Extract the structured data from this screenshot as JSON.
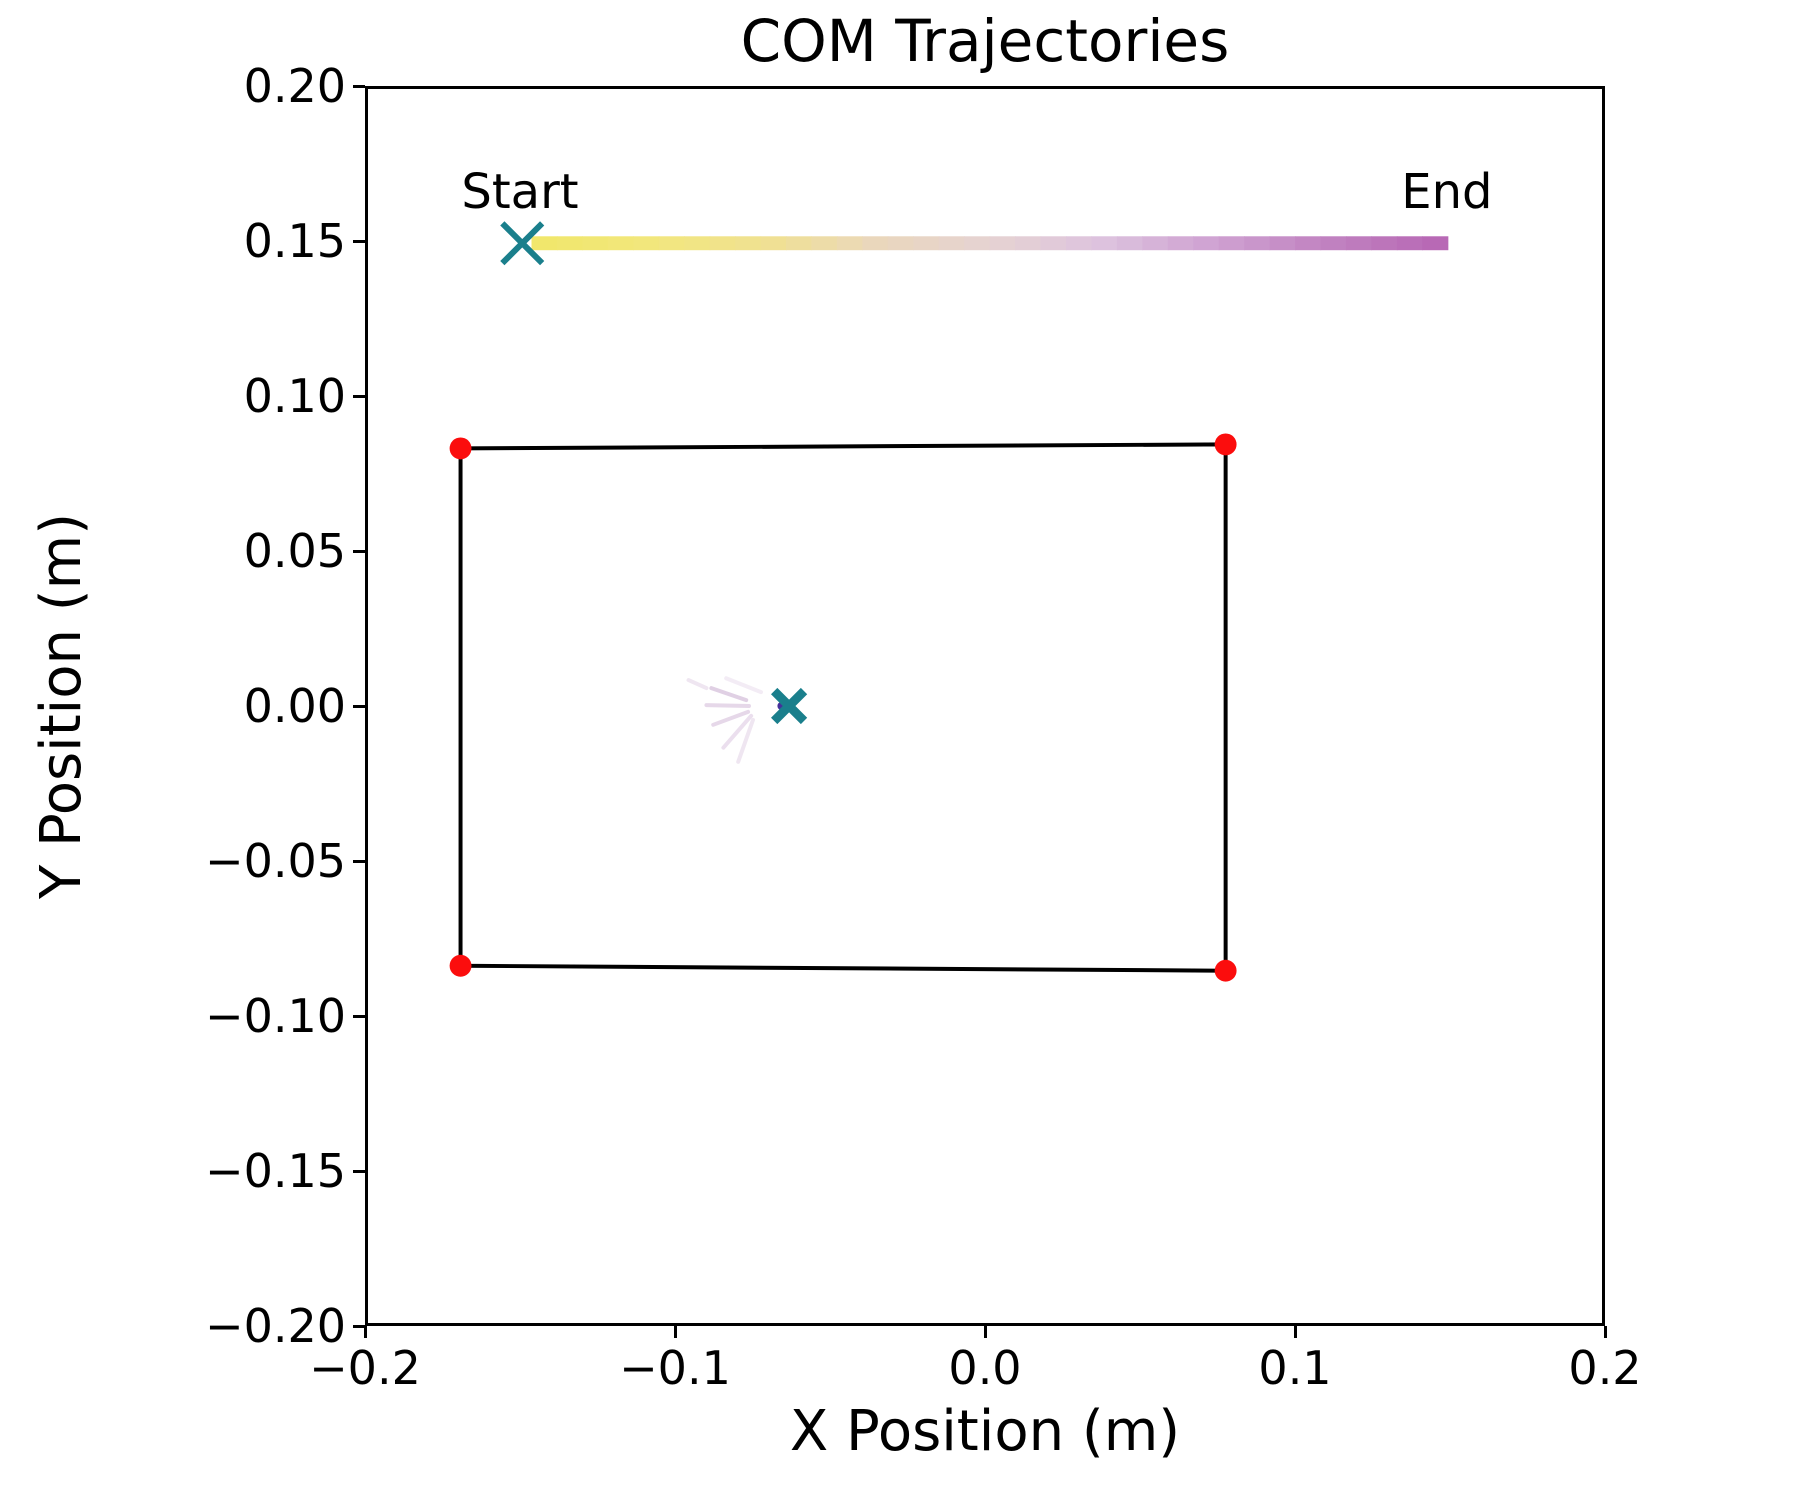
{
  "figure": {
    "title": "COM Trajectories"
  },
  "chart_data": {
    "type": "line",
    "title": "COM Trajectories",
    "xlabel": "X Position (m)",
    "ylabel": "Y Position (m)",
    "xlim": [
      -0.2,
      0.2
    ],
    "ylim": [
      -0.2,
      0.2
    ],
    "grid": false,
    "legend": "none",
    "xticks": {
      "values": [
        -0.2,
        -0.1,
        0.0,
        0.1,
        0.2
      ],
      "labels": [
        "−0.2",
        "−0.1",
        "0.0",
        "0.1",
        "0.2"
      ]
    },
    "yticks": {
      "values": [
        0.2,
        0.15,
        0.1,
        0.05,
        0.0,
        -0.05,
        -0.1,
        -0.15,
        -0.2
      ],
      "labels": [
        "0.20",
        "0.15",
        "0.10",
        "0.05",
        "0.00",
        "−0.05",
        "−0.10",
        "−0.15",
        "−0.20"
      ]
    },
    "annotations": [
      {
        "label": "Start",
        "x": -0.15,
        "y": 0.157
      },
      {
        "label": "End",
        "x": 0.149,
        "y": 0.157
      }
    ],
    "com_trajectory": {
      "description": "time-gradient COM path at constant y",
      "y": 0.15,
      "x_start": -0.147,
      "x_end": 0.15,
      "n_segments": 36,
      "colormap_stops": [
        "#f1e76c",
        "#f2e77e",
        "#f0e192",
        "#ead7bd",
        "#e6d3d2",
        "#ddc3de",
        "#cfa2d2",
        "#c183c1",
        "#b869b5"
      ]
    },
    "start_marker": {
      "x": -0.15,
      "y": 0.15,
      "shape": "x",
      "color": "#1a7f8c"
    },
    "center_marker": {
      "x": -0.0635,
      "y": 0.0,
      "shape": "x",
      "color": "#1a7f8c"
    },
    "center_dot": {
      "x": -0.066,
      "y": 0.0,
      "color": "#46309b"
    },
    "support_polygon": {
      "edge_color": "#000000",
      "corner_color": "#fb0d0d",
      "corners": [
        [
          -0.17,
          0.0835
        ],
        [
          0.078,
          0.0848
        ],
        [
          0.078,
          -0.0858
        ],
        [
          -0.17,
          -0.0842
        ]
      ]
    },
    "faint_trajectories": [
      {
        "x1": -0.0774,
        "y1": 0.0019,
        "x2": -0.0887,
        "y2": 0.0058,
        "color": "rgba(199,170,205,0.55)"
      },
      {
        "x1": -0.0765,
        "y1": 0.0,
        "x2": -0.0903,
        "y2": 0.0003,
        "color": "rgba(205,178,212,0.50)"
      },
      {
        "x1": -0.0768,
        "y1": -0.0019,
        "x2": -0.0881,
        "y2": -0.0061,
        "color": "rgba(205,178,212,0.50)"
      },
      {
        "x1": -0.0758,
        "y1": -0.0032,
        "x2": -0.0848,
        "y2": -0.0135,
        "color": "rgba(210,185,218,0.45)"
      },
      {
        "x1": -0.0752,
        "y1": -0.0045,
        "x2": -0.08,
        "y2": -0.0181,
        "color": "rgba(214,192,220,0.40)"
      },
      {
        "x1": -0.0903,
        "y1": 0.0058,
        "x2": -0.0961,
        "y2": 0.0084,
        "color": "rgba(214,192,220,0.40)"
      },
      {
        "x1": -0.0726,
        "y1": 0.0045,
        "x2": -0.0839,
        "y2": 0.009,
        "color": "rgba(220,200,226,0.35)"
      }
    ]
  }
}
